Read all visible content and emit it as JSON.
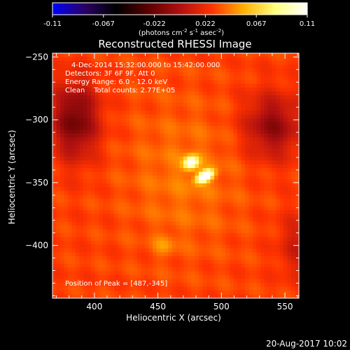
{
  "chart_data": {
    "type": "heatmap",
    "title": "Reconstructed RHESSI Image",
    "xlabel": "Heliocentric X (arcsec)",
    "ylabel": "Heliocentric Y (arcsec)",
    "xlim": [
      367,
      561
    ],
    "ylim": [
      -442,
      -247
    ],
    "x_ticks": [
      400,
      450,
      500,
      550
    ],
    "y_ticks": [
      -250,
      -300,
      -350,
      -400
    ],
    "colorbar": {
      "range": [
        -0.11,
        0.11
      ],
      "ticks": [
        "-0.11",
        "-0.067",
        "-0.022",
        "0.022",
        "0.067",
        "0.11"
      ],
      "unit_base": "(photons cm",
      "unit_exp1": "-2",
      "unit_mid1": " s",
      "unit_exp2": "-1",
      "unit_mid2": " asec",
      "unit_exp3": "-2",
      "unit_end": ")",
      "colormap": [
        "#0000ff",
        "#2a0066",
        "#000000",
        "#5a0000",
        "#b01010",
        "#ff3300",
        "#ffb000",
        "#ffff80",
        "#ffffff"
      ]
    },
    "annotations": [
      "4-Dec-2014 15:32:00.000 to 15:42:00.000",
      "Detectors: 3F 6F 9F, Att 0",
      "Energy Range: 6.0 - 12.0 keV",
      "Clean    Total counts: 2.77E+05"
    ],
    "peak_label": "Position of Peak = [487,-345]",
    "peak_position": [
      487,
      -345
    ],
    "sources": [
      {
        "x": 487,
        "y": -345,
        "amplitude": 0.11,
        "sigma_x": 7,
        "sigma_y": 4,
        "angle_deg": 30
      },
      {
        "x": 476,
        "y": -334,
        "amplitude": 0.08,
        "sigma_x": 6,
        "sigma_y": 5,
        "angle_deg": 30
      }
    ],
    "background_level": 0.03
  },
  "footer": {
    "date": "20-Aug-2017 10:02"
  }
}
